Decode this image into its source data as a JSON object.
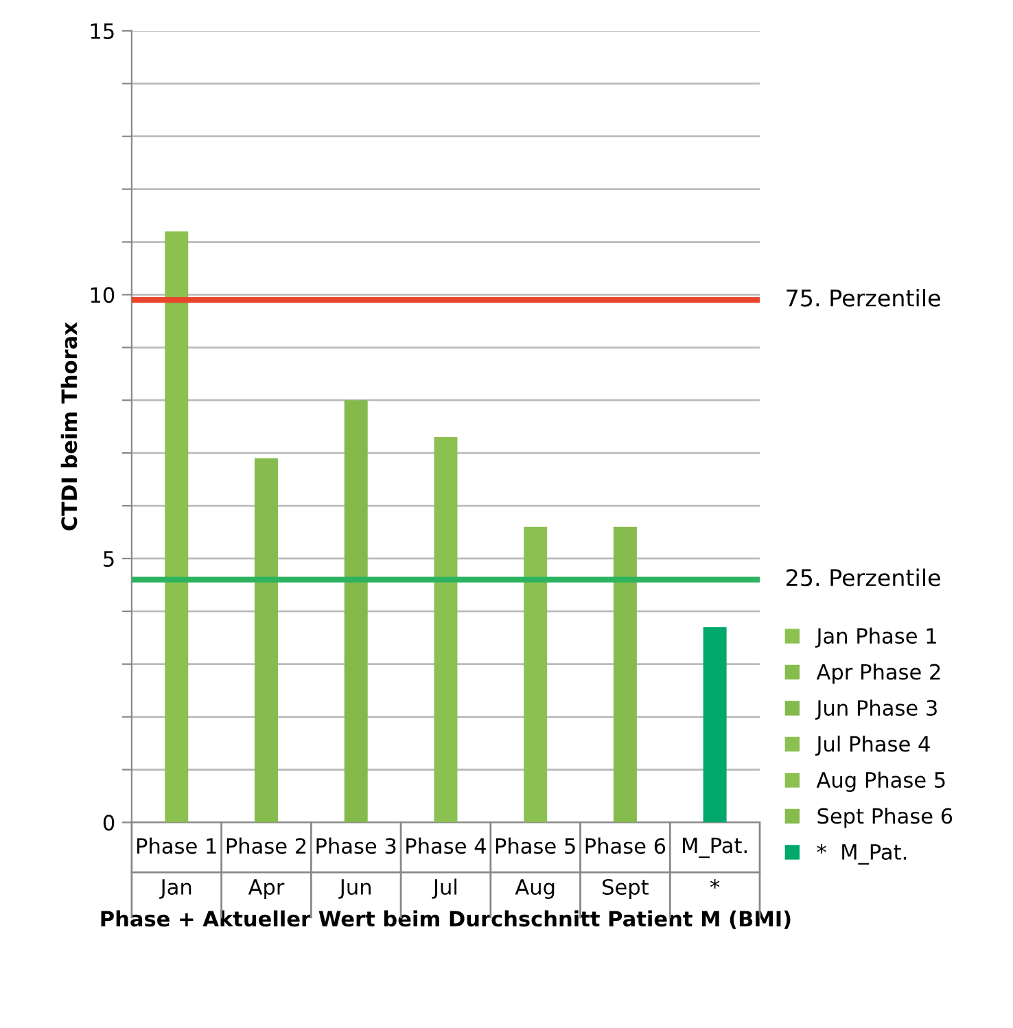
{
  "chart_data": {
    "type": "bar",
    "xlabel": "Phase + Aktueller Wert beim Durchschnitt Patient M (BMI)",
    "ylabel": "CTDI beim Thorax",
    "categories": [
      "Phase 1\nJan",
      "Phase 2\nApr",
      "Phase 3\nJun",
      "Phase 4\nJul",
      "Phase 5\nAug",
      "Phase 6\nSept",
      "M_Pat.\n*"
    ],
    "series": [
      {
        "name": "Jan Phase 1",
        "color": "#8cc152",
        "values": [
          11.2,
          null,
          null,
          null,
          null,
          null,
          null
        ]
      },
      {
        "name": "Apr Phase 2",
        "color": "#86bb4e",
        "values": [
          null,
          6.9,
          null,
          null,
          null,
          null,
          null
        ]
      },
      {
        "name": "Jun Phase 3",
        "color": "#84b94c",
        "values": [
          null,
          null,
          8.0,
          null,
          null,
          null,
          null
        ]
      },
      {
        "name": "Jul Phase 4",
        "color": "#8cc152",
        "values": [
          null,
          null,
          null,
          7.3,
          null,
          null,
          null
        ]
      },
      {
        "name": "Aug Phase 5",
        "color": "#8cc152",
        "values": [
          null,
          null,
          null,
          null,
          5.6,
          null,
          null
        ]
      },
      {
        "name": "Sept Phase 6",
        "color": "#86bb4e",
        "values": [
          null,
          null,
          null,
          null,
          null,
          5.6,
          null
        ]
      },
      {
        "name": "*  M_Pat.",
        "color": "#00a86b",
        "values": [
          null,
          null,
          null,
          null,
          null,
          null,
          3.7
        ]
      }
    ],
    "ylim": [
      0,
      15
    ],
    "yticks": [
      0,
      {
        "value": 1,
        "label": null
      },
      {
        "value": 2,
        "label": null
      },
      {
        "value": 3,
        "label": null
      },
      {
        "value": 4,
        "label": null
      },
      5,
      {
        "value": 6,
        "label": null
      },
      {
        "value": 7,
        "label": null
      },
      {
        "value": 8,
        "label": null
      },
      {
        "value": 9,
        "label": null
      },
      10,
      {
        "value": 11,
        "label": null
      },
      {
        "value": 12,
        "label": null
      },
      {
        "value": 13,
        "label": null
      },
      {
        "value": 14,
        "label": null
      },
      15
    ],
    "grid": "y",
    "legend": "right",
    "ref_lines": [
      {
        "axis": "y",
        "value": 9.9,
        "label": "75. Perzentile",
        "color": "#e8452c"
      },
      {
        "axis": "y",
        "value": 4.6,
        "label": "25. Perzentile",
        "color": "#2db35f"
      }
    ]
  }
}
